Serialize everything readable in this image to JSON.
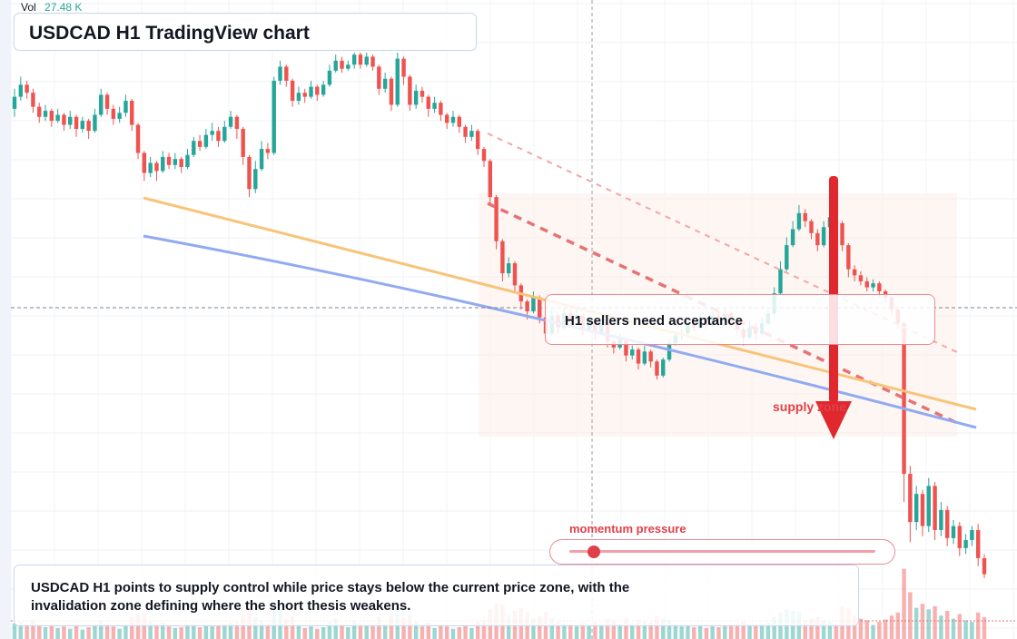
{
  "header": {
    "volume_label": "Vol",
    "volume_value": "27.48 K",
    "title": "USDCAD H1 TradingView chart"
  },
  "annotations": {
    "callout_text": "H1 sellers need acceptance",
    "supply_label": "supply zone",
    "momentum_label": "momentum pressure",
    "summary_text": "USDCAD H1 points to supply control while price stays below the current price zone, with the invalidation zone defining where the short thesis weakens."
  },
  "colors": {
    "up": "#26a69a",
    "down": "#ef5350",
    "trend_orange": "#f7c47a",
    "trend_blue": "#92aaf0",
    "red_accent": "#e0282e"
  },
  "momentum": {
    "level": 0.08
  },
  "chart_data": {
    "type": "candlestick",
    "symbol": "USDCAD",
    "timeframe": "H1",
    "grid": true,
    "price_range": [
      0,
      100
    ],
    "volume_range": [
      0,
      100
    ],
    "candles": [
      [
        86.0,
        89.0,
        91.0,
        84.0,
        20
      ],
      [
        89.0,
        92.0,
        94.0,
        88.0,
        22
      ],
      [
        92.0,
        90.0,
        93.0,
        88.5,
        18
      ],
      [
        90.0,
        86.5,
        91.0,
        85.0,
        25
      ],
      [
        86.5,
        84.0,
        87.5,
        82.5,
        19
      ],
      [
        84.0,
        85.5,
        87.0,
        83.0,
        15
      ],
      [
        85.5,
        83.0,
        86.0,
        81.5,
        17
      ],
      [
        83.0,
        84.5,
        86.0,
        82.5,
        14
      ],
      [
        84.5,
        82.0,
        85.0,
        80.5,
        16
      ],
      [
        82.0,
        84.0,
        85.5,
        81.0,
        13
      ],
      [
        84.0,
        81.0,
        84.5,
        79.0,
        18
      ],
      [
        81.0,
        83.0,
        84.0,
        80.0,
        12
      ],
      [
        83.0,
        80.5,
        83.5,
        78.5,
        15
      ],
      [
        80.5,
        84.5,
        86.0,
        80.0,
        17
      ],
      [
        84.5,
        89.5,
        91.0,
        84.0,
        24
      ],
      [
        89.5,
        86.0,
        90.0,
        84.5,
        20
      ],
      [
        86.0,
        83.5,
        87.0,
        82.0,
        16
      ],
      [
        83.5,
        85.0,
        86.5,
        82.5,
        13
      ],
      [
        85.0,
        88.0,
        89.5,
        84.0,
        19
      ],
      [
        88.0,
        82.0,
        88.5,
        80.5,
        28
      ],
      [
        82.0,
        75.0,
        82.5,
        73.5,
        31
      ],
      [
        75.0,
        70.0,
        75.5,
        68.0,
        33
      ],
      [
        70.0,
        72.5,
        74.0,
        69.0,
        22
      ],
      [
        72.5,
        70.5,
        73.0,
        68.0,
        18
      ],
      [
        70.5,
        74.0,
        75.5,
        70.0,
        21
      ],
      [
        74.0,
        72.0,
        75.0,
        71.0,
        16
      ],
      [
        72.0,
        73.5,
        75.0,
        71.0,
        14
      ],
      [
        73.5,
        71.5,
        74.0,
        70.0,
        15
      ],
      [
        71.5,
        74.5,
        76.0,
        71.0,
        17
      ],
      [
        74.5,
        78.0,
        79.0,
        74.0,
        20
      ],
      [
        78.0,
        76.5,
        79.5,
        75.5,
        15
      ],
      [
        76.5,
        79.5,
        81.0,
        76.0,
        18
      ],
      [
        79.5,
        80.5,
        82.5,
        78.0,
        16
      ],
      [
        80.5,
        78.0,
        81.5,
        76.5,
        17
      ],
      [
        78.0,
        81.5,
        83.0,
        77.5,
        19
      ],
      [
        81.5,
        84.0,
        85.5,
        81.0,
        21
      ],
      [
        84.0,
        81.0,
        84.5,
        78.5,
        22
      ],
      [
        81.0,
        74.0,
        81.5,
        72.0,
        30
      ],
      [
        74.0,
        66.0,
        74.5,
        64.0,
        36
      ],
      [
        66.0,
        71.0,
        73.0,
        65.0,
        28
      ],
      [
        71.0,
        76.0,
        78.0,
        70.5,
        24
      ],
      [
        76.0,
        75.0,
        77.5,
        73.5,
        18
      ],
      [
        75.0,
        93.0,
        94.0,
        74.5,
        45
      ],
      [
        93.0,
        96.5,
        98.0,
        92.0,
        38
      ],
      [
        96.5,
        93.0,
        97.0,
        91.5,
        26
      ],
      [
        93.0,
        88.0,
        93.5,
        86.5,
        29
      ],
      [
        88.0,
        90.0,
        91.5,
        87.0,
        18
      ],
      [
        90.0,
        89.0,
        91.0,
        87.5,
        14
      ],
      [
        89.0,
        91.5,
        93.0,
        88.5,
        16
      ],
      [
        91.5,
        89.5,
        92.0,
        88.0,
        13
      ],
      [
        89.5,
        92.0,
        93.0,
        89.0,
        15
      ],
      [
        92.0,
        95.5,
        97.0,
        91.5,
        22
      ],
      [
        95.5,
        98.0,
        99.5,
        95.0,
        26
      ],
      [
        98.0,
        96.0,
        99.0,
        95.0,
        19
      ],
      [
        96.0,
        97.0,
        98.0,
        95.5,
        15
      ],
      [
        97.0,
        99.5,
        100.0,
        96.0,
        24
      ],
      [
        99.5,
        97.0,
        100.0,
        96.0,
        20
      ],
      [
        97.0,
        99.0,
        100.0,
        96.5,
        18
      ],
      [
        99.0,
        96.5,
        99.5,
        95.5,
        17
      ],
      [
        96.5,
        91.0,
        97.0,
        89.5,
        28
      ],
      [
        91.0,
        93.5,
        95.0,
        90.0,
        19
      ],
      [
        93.5,
        87.0,
        94.0,
        85.5,
        31
      ],
      [
        87.0,
        98.5,
        100.0,
        86.5,
        40
      ],
      [
        98.5,
        94.0,
        99.0,
        92.0,
        27
      ],
      [
        94.0,
        87.0,
        94.5,
        85.5,
        30
      ],
      [
        87.0,
        90.5,
        92.0,
        86.0,
        22
      ],
      [
        90.5,
        89.0,
        91.5,
        87.5,
        16
      ],
      [
        89.0,
        86.0,
        89.5,
        84.0,
        21
      ],
      [
        86.0,
        87.5,
        89.0,
        85.0,
        14
      ],
      [
        87.5,
        84.5,
        88.0,
        83.0,
        18
      ],
      [
        84.5,
        82.5,
        85.0,
        81.0,
        16
      ],
      [
        82.5,
        84.0,
        85.5,
        81.5,
        13
      ],
      [
        84.0,
        81.5,
        84.5,
        80.0,
        15
      ],
      [
        81.5,
        79.0,
        82.0,
        77.5,
        19
      ],
      [
        79.0,
        80.5,
        82.0,
        78.0,
        14
      ],
      [
        80.5,
        76.0,
        81.0,
        74.5,
        22
      ],
      [
        76.0,
        73.0,
        76.5,
        71.5,
        24
      ],
      [
        73.0,
        64.0,
        73.5,
        62.0,
        38
      ],
      [
        64.0,
        53.0,
        64.5,
        51.0,
        46
      ],
      [
        53.0,
        45.0,
        53.5,
        43.0,
        44
      ],
      [
        45.0,
        47.5,
        49.0,
        44.0,
        30
      ],
      [
        47.5,
        42.0,
        48.0,
        40.5,
        36
      ],
      [
        42.0,
        38.0,
        42.5,
        36.0,
        40
      ],
      [
        38.0,
        35.5,
        38.5,
        33.5,
        34
      ],
      [
        35.5,
        39.0,
        40.5,
        35.0,
        26
      ],
      [
        39.0,
        34.0,
        39.5,
        32.5,
        29
      ],
      [
        34.0,
        30.0,
        34.5,
        28.0,
        35
      ],
      [
        30.0,
        34.5,
        36.0,
        29.5,
        27
      ],
      [
        34.5,
        31.5,
        35.0,
        30.0,
        22
      ],
      [
        31.5,
        35.0,
        36.5,
        31.0,
        20
      ],
      [
        35.0,
        33.5,
        36.0,
        32.0,
        18
      ],
      [
        33.5,
        34.5,
        36.0,
        33.0,
        16
      ],
      [
        34.5,
        31.0,
        35.0,
        29.5,
        21
      ],
      [
        31.0,
        33.0,
        34.5,
        30.5,
        17
      ],
      [
        33.0,
        30.0,
        33.5,
        28.5,
        22
      ],
      [
        30.0,
        32.5,
        34.0,
        29.5,
        18
      ],
      [
        32.5,
        28.0,
        33.0,
        26.5,
        26
      ],
      [
        28.0,
        26.5,
        28.5,
        25.0,
        24
      ],
      [
        26.5,
        28.5,
        30.0,
        26.0,
        19
      ],
      [
        28.5,
        24.5,
        29.0,
        23.0,
        27
      ],
      [
        24.5,
        26.0,
        27.0,
        23.5,
        20
      ],
      [
        26.0,
        22.5,
        26.5,
        21.0,
        25
      ],
      [
        22.5,
        25.5,
        27.0,
        22.0,
        22
      ],
      [
        25.5,
        23.0,
        26.0,
        21.5,
        21
      ],
      [
        23.0,
        19.5,
        23.5,
        18.5,
        30
      ],
      [
        19.5,
        23.5,
        24.0,
        19.0,
        26
      ],
      [
        23.5,
        27.5,
        28.5,
        23.0,
        24
      ],
      [
        27.5,
        29.5,
        30.5,
        27.0,
        20
      ],
      [
        29.5,
        30.0,
        31.0,
        28.5,
        16
      ],
      [
        30.0,
        32.5,
        33.5,
        29.5,
        18
      ],
      [
        32.5,
        31.5,
        34.0,
        30.5,
        15
      ],
      [
        31.5,
        33.5,
        35.0,
        31.0,
        17
      ],
      [
        33.5,
        32.0,
        34.5,
        31.0,
        14
      ],
      [
        32.0,
        34.5,
        35.5,
        31.5,
        16
      ],
      [
        34.5,
        33.0,
        35.5,
        32.0,
        15
      ],
      [
        33.0,
        35.0,
        36.5,
        32.5,
        17
      ],
      [
        35.0,
        33.0,
        35.5,
        31.5,
        18
      ],
      [
        33.0,
        31.0,
        33.5,
        29.5,
        20
      ],
      [
        31.0,
        29.0,
        31.5,
        27.0,
        22
      ],
      [
        29.0,
        31.5,
        33.0,
        28.5,
        18
      ],
      [
        31.5,
        30.0,
        32.5,
        28.5,
        17
      ],
      [
        30.0,
        32.5,
        34.0,
        29.5,
        19
      ],
      [
        32.5,
        35.0,
        36.0,
        32.0,
        21
      ],
      [
        35.0,
        40.0,
        41.5,
        34.5,
        28
      ],
      [
        40.0,
        46.0,
        48.0,
        39.5,
        34
      ],
      [
        46.0,
        52.0,
        54.0,
        45.5,
        38
      ],
      [
        52.0,
        56.0,
        58.0,
        51.5,
        36
      ],
      [
        56.0,
        60.0,
        62.0,
        55.5,
        35
      ],
      [
        60.0,
        58.0,
        61.0,
        56.5,
        24
      ],
      [
        58.0,
        55.0,
        58.5,
        53.5,
        26
      ],
      [
        55.0,
        52.0,
        56.0,
        50.5,
        28
      ],
      [
        52.0,
        56.5,
        58.0,
        51.5,
        24
      ],
      [
        56.5,
        59.0,
        61.0,
        56.0,
        22
      ],
      [
        59.0,
        57.5,
        60.5,
        56.0,
        18
      ],
      [
        57.5,
        52.0,
        58.0,
        50.5,
        42
      ],
      [
        52.0,
        46.0,
        52.5,
        44.0,
        40
      ],
      [
        46.0,
        44.5,
        47.0,
        43.0,
        30
      ],
      [
        44.5,
        43.0,
        45.5,
        42.0,
        26
      ],
      [
        43.0,
        41.5,
        44.0,
        40.5,
        24
      ],
      [
        41.5,
        42.5,
        43.5,
        40.5,
        18
      ],
      [
        42.5,
        40.5,
        43.0,
        39.0,
        22
      ],
      [
        40.5,
        39.0,
        41.0,
        37.5,
        25
      ],
      [
        39.0,
        36.0,
        39.5,
        34.5,
        30
      ],
      [
        36.0,
        32.5,
        36.5,
        31.0,
        34
      ],
      [
        32.5,
        -5.0,
        33.0,
        -12.0,
        90
      ],
      [
        -5.0,
        -17.0,
        -3.0,
        -22.0,
        60
      ],
      [
        -17.0,
        -10.0,
        -8.0,
        -19.0,
        40
      ],
      [
        -10.0,
        -18.0,
        -9.0,
        -20.5,
        45
      ],
      [
        -18.0,
        -8.0,
        -6.0,
        -19.5,
        38
      ],
      [
        -8.0,
        -19.0,
        -7.0,
        -21.5,
        42
      ],
      [
        -19.0,
        -14.0,
        -12.0,
        -20.5,
        30
      ],
      [
        -14.0,
        -21.0,
        -13.0,
        -23.0,
        36
      ],
      [
        -21.0,
        -18.0,
        -16.5,
        -22.5,
        26
      ],
      [
        -18.0,
        -23.5,
        -17.0,
        -25.5,
        32
      ],
      [
        -23.5,
        -21.5,
        -20.0,
        -25.0,
        24
      ],
      [
        -21.5,
        -19.0,
        -18.0,
        -23.0,
        22
      ],
      [
        -19.0,
        -26.0,
        -17.5,
        -28.0,
        34
      ],
      [
        -26.0,
        -30.0,
        -25.0,
        -31.0,
        28
      ]
    ]
  }
}
